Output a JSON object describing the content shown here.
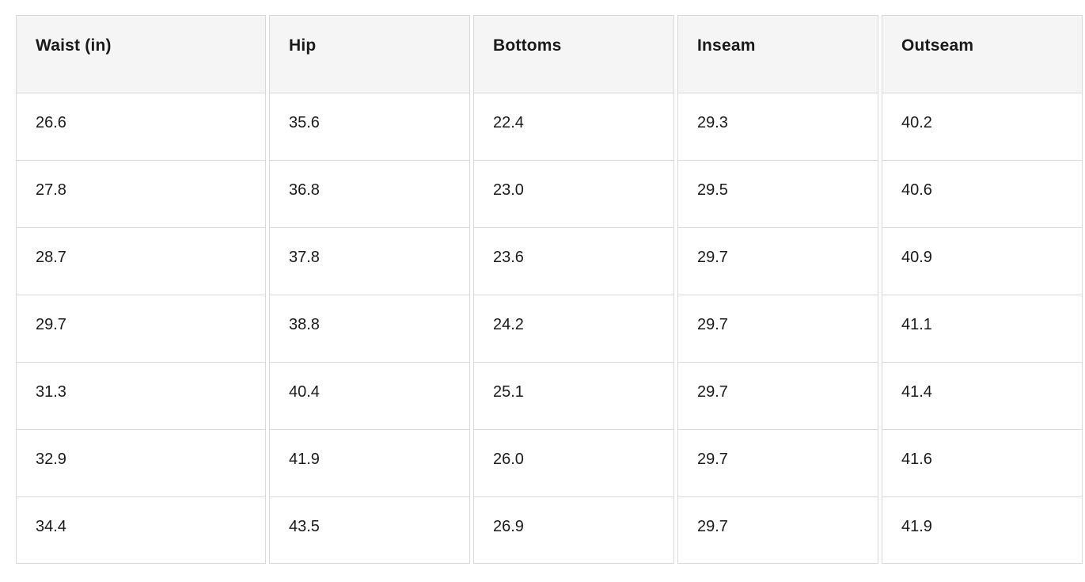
{
  "chart_data": {
    "type": "table",
    "title": "",
    "columns": [
      "Waist (in)",
      "Hip",
      "Bottoms",
      "Inseam",
      "Outseam"
    ],
    "rows": [
      [
        "26.6",
        "35.6",
        "22.4",
        "29.3",
        "40.2"
      ],
      [
        "27.8",
        "36.8",
        "23.0",
        "29.5",
        "40.6"
      ],
      [
        "28.7",
        "37.8",
        "23.6",
        "29.7",
        "40.9"
      ],
      [
        "29.7",
        "38.8",
        "24.2",
        "29.7",
        "41.1"
      ],
      [
        "31.3",
        "40.4",
        "25.1",
        "29.7",
        "41.4"
      ],
      [
        "32.9",
        "41.9",
        "26.0",
        "29.7",
        "41.6"
      ],
      [
        "34.4",
        "43.5",
        "26.9",
        "29.7",
        "41.9"
      ]
    ]
  },
  "colors": {
    "header_bg": "#f5f5f5",
    "border": "#d9d9d9",
    "text": "#1a1a1a",
    "page_bg": "#ffffff"
  }
}
